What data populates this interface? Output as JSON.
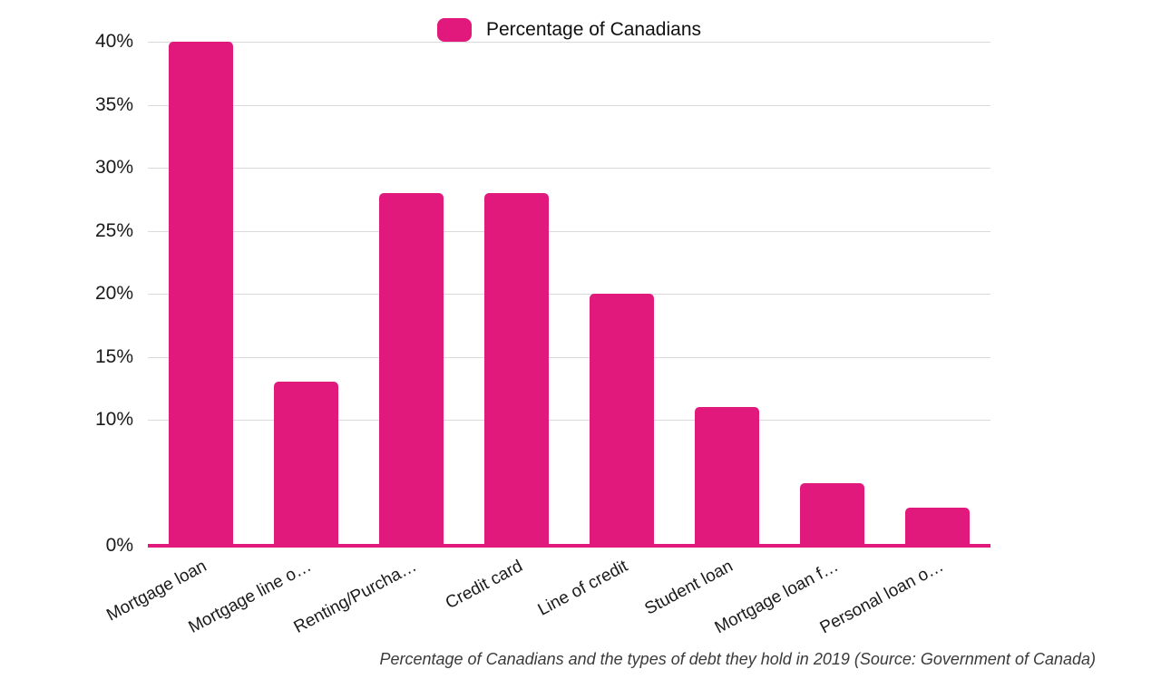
{
  "legend": {
    "label": "Percentage of Canadians"
  },
  "colors": {
    "bar": "#E2197D",
    "baseline": "#E2197D",
    "gridline": "#DADADA",
    "axis_text": "#1A1A1A",
    "caption_text": "#3A3A3A"
  },
  "y_axis": {
    "tick_labels": [
      "40%",
      "35%",
      "30%",
      "25%",
      "20%",
      "15%",
      "10%",
      "0%"
    ],
    "tick_values": [
      40,
      35,
      30,
      25,
      20,
      15,
      10,
      0
    ],
    "gridline_values": [
      40,
      35,
      30,
      25,
      20,
      15,
      10
    ]
  },
  "chart_data": {
    "type": "bar",
    "series_name": "Percentage of Canadians",
    "categories": [
      "Mortgage loan",
      "Mortgage line o…",
      "Renting/Purcha…",
      "Credit card",
      "Line of credit",
      "Student loan",
      "Mortgage loan f…",
      "Personal loan o…"
    ],
    "values": [
      40,
      13,
      28,
      28,
      20,
      11,
      5,
      3
    ],
    "title": "",
    "xlabel": "",
    "ylabel": "",
    "ylim": [
      0,
      40
    ],
    "grid": true,
    "legend_position": "top-center",
    "x_label_rotation_deg": -28
  },
  "caption": {
    "text": "Percentage of Canadians and the types of debt they hold in 2019 (Source: Government of Canada)"
  }
}
